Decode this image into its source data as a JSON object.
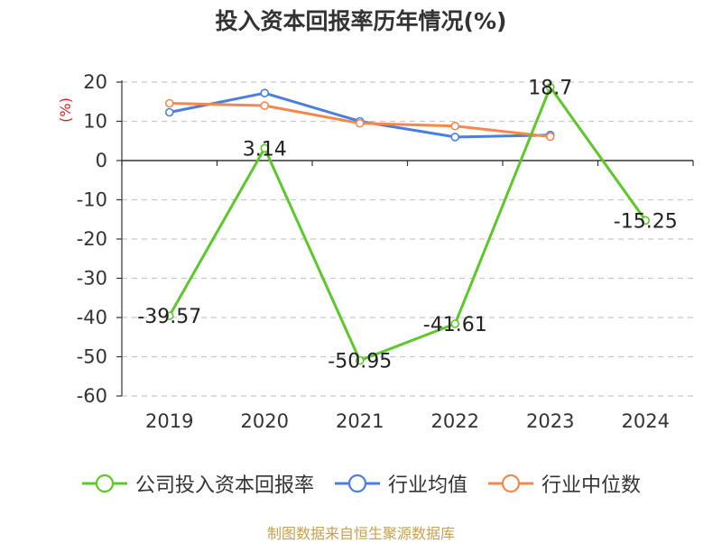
{
  "chart_data": {
    "type": "line",
    "title": "投入资本回报率历年情况(%)",
    "ylabel": "(%)",
    "categories": [
      "2019",
      "2020",
      "2021",
      "2022",
      "2023",
      "2024"
    ],
    "ylim": [
      -60,
      20
    ],
    "yticks": [
      20,
      10,
      0,
      -10,
      -20,
      -30,
      -40,
      -50,
      -60
    ],
    "grid": true,
    "legend_position": "bottom",
    "series": [
      {
        "name": "公司投入资本回报率",
        "color": "#5cc82a",
        "values": [
          -39.57,
          3.14,
          -50.95,
          -41.61,
          18.7,
          -15.25
        ],
        "labels": [
          "-39.57",
          "3.14",
          "-50.95",
          "-41.61",
          "18.7",
          "-15.25"
        ]
      },
      {
        "name": "行业均值",
        "color": "#4a7fe0",
        "values": [
          12.3,
          17.2,
          10.0,
          6.0,
          6.5,
          null
        ]
      },
      {
        "name": "行业中位数",
        "color": "#f5884c",
        "values": [
          14.6,
          14.0,
          9.5,
          8.8,
          6.1,
          null
        ]
      }
    ]
  },
  "source": "制图数据来自恒生聚源数据库"
}
